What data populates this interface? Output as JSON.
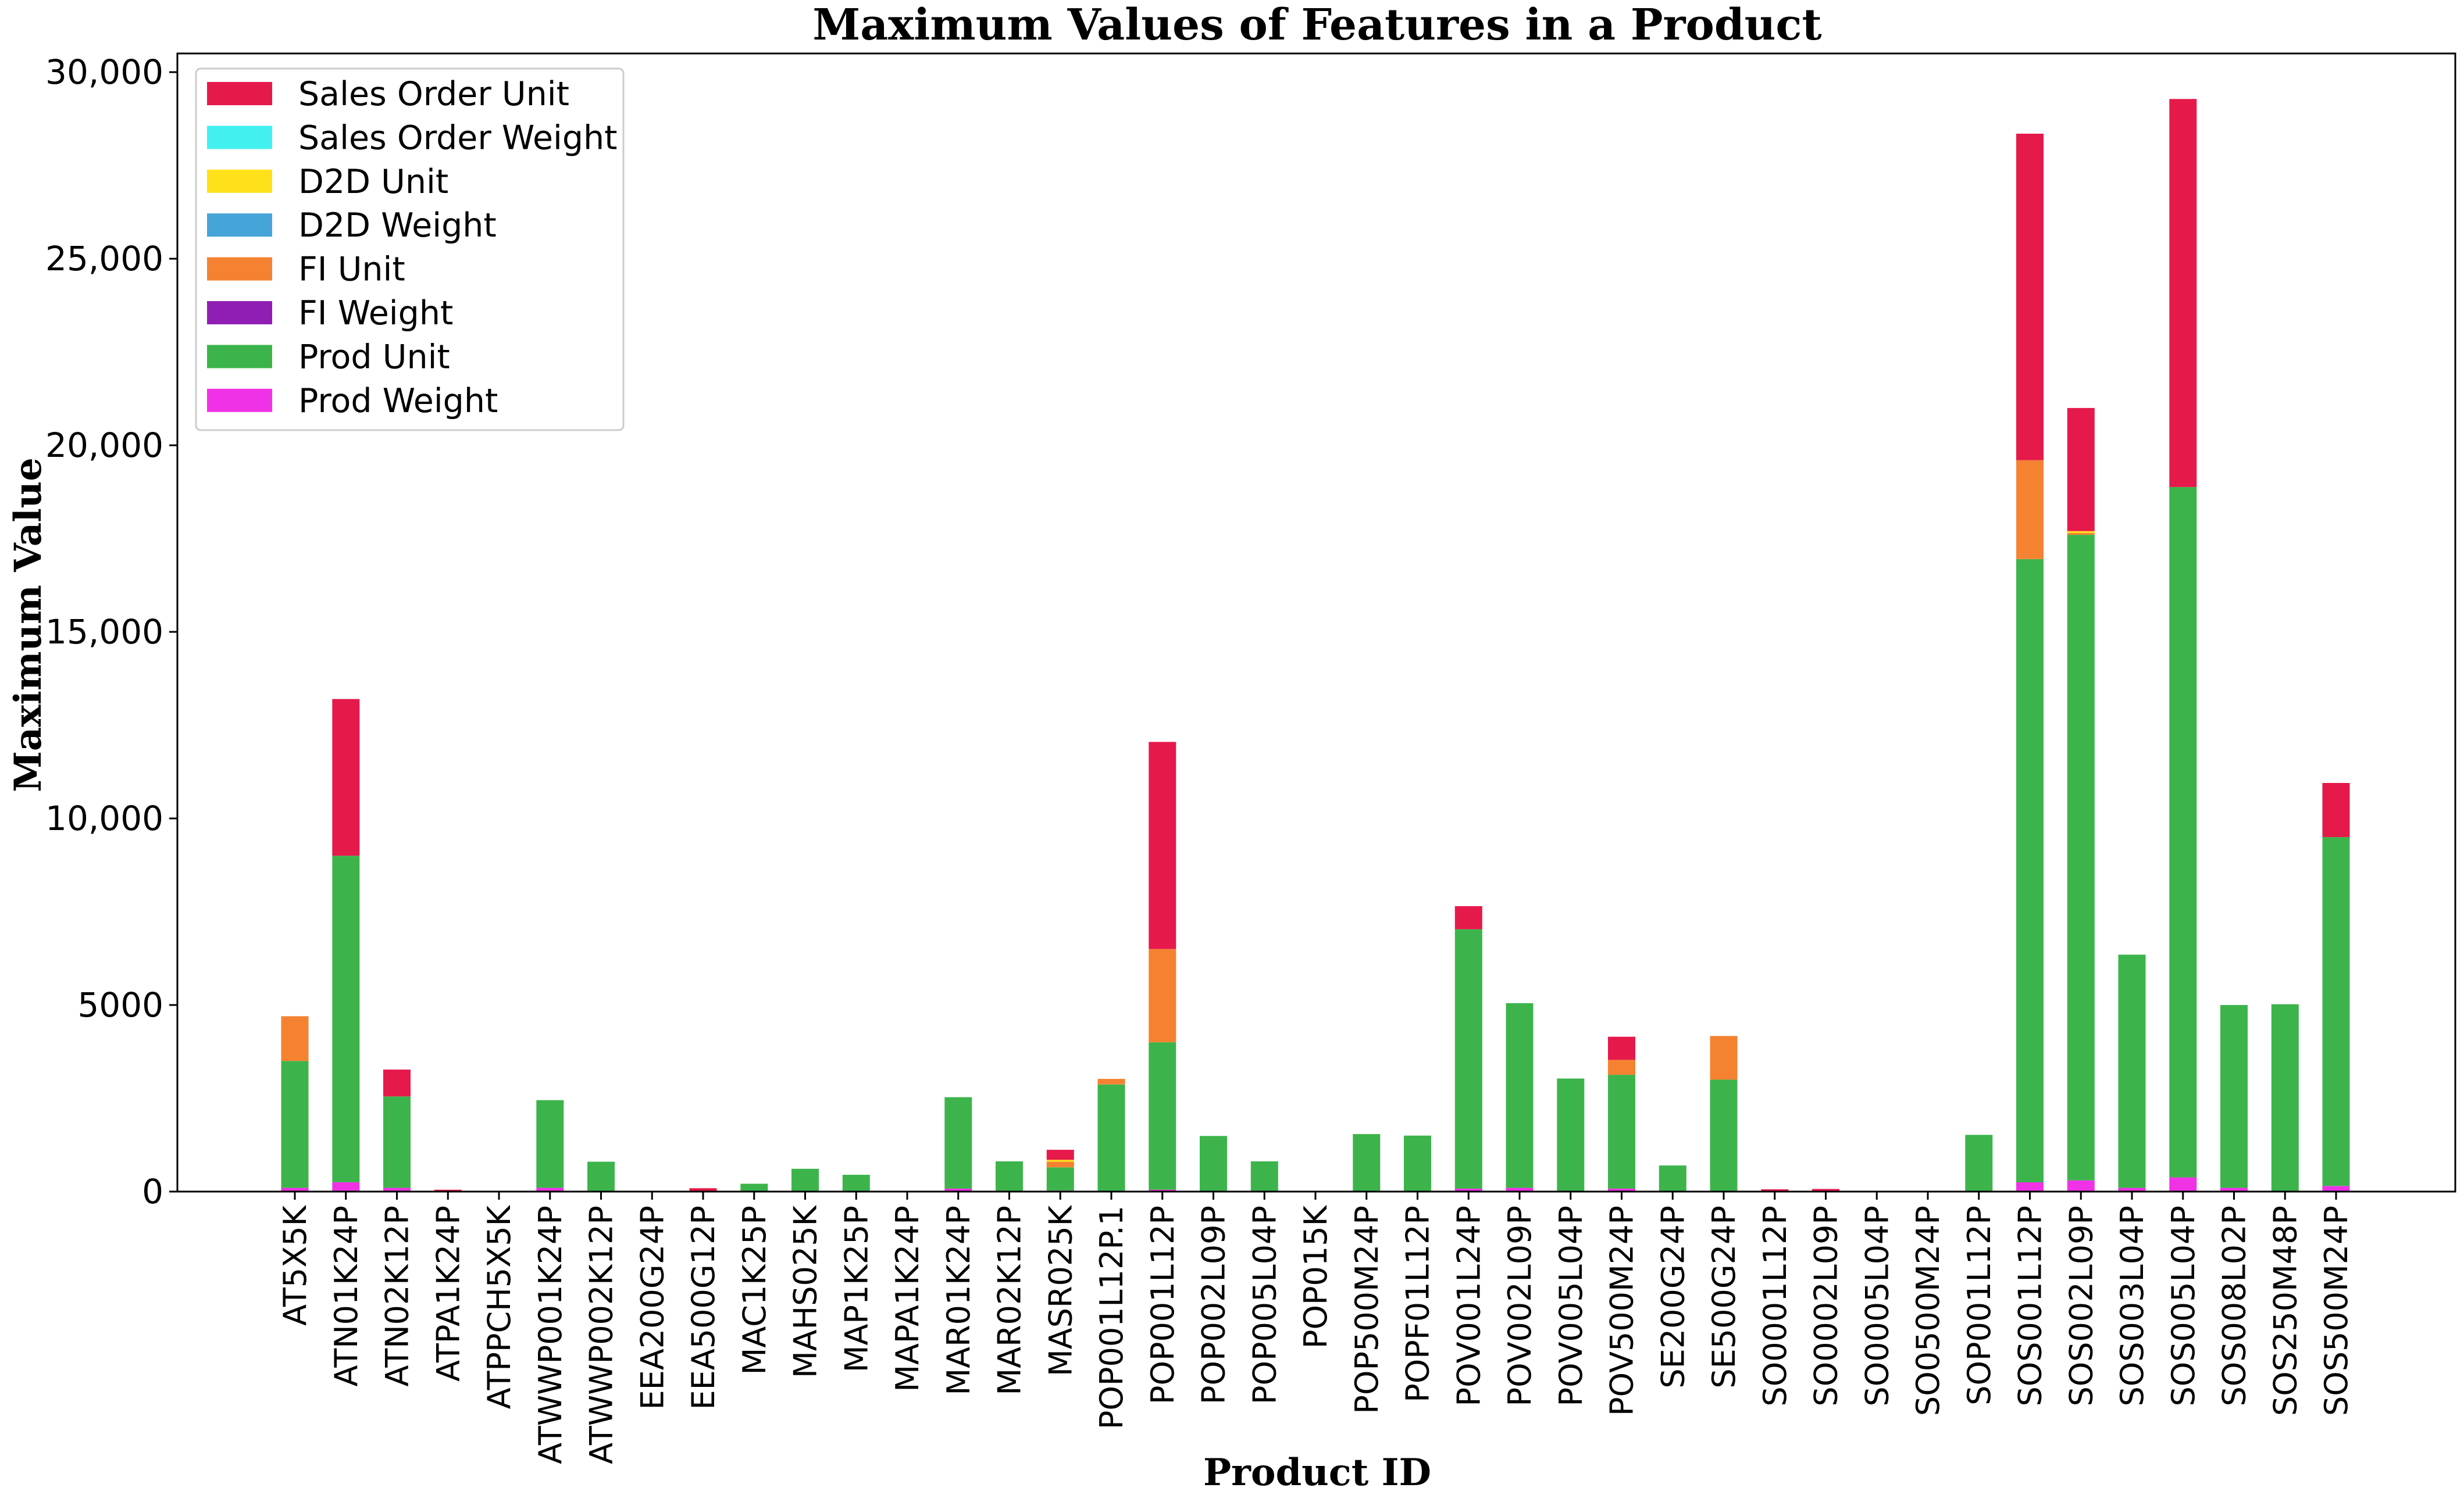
{
  "chart_data": {
    "type": "bar",
    "stacked": true,
    "title": "Maximum Values of Features in a Product",
    "xlabel": "Product ID",
    "ylabel": "Maximum Value",
    "ylim": [
      0,
      30500
    ],
    "yticks": [
      0,
      5000,
      10000,
      15000,
      20000,
      25000,
      30000
    ],
    "ytick_labels": [
      "0",
      "5000",
      "10,000",
      "15,000",
      "20,000",
      "25,000",
      "30,000"
    ],
    "grid": false,
    "legend_position": "top-left",
    "categories": [
      "AT5X5K",
      "ATN01K24P",
      "ATN02K12P",
      "ATPA1K24P",
      "ATPPCH5X5K",
      "ATWWP001K24P",
      "ATWWP002K12P",
      "EEA200G24P",
      "EEA500G12P",
      "MAC1K25P",
      "MAHS025K",
      "MAP1K25P",
      "MAPA1K24P",
      "MAR01K24P",
      "MAR02K12P",
      "MASR025K",
      "POP001L12P.1",
      "POP001L12P",
      "POP002L09P",
      "POP005L04P",
      "POP015K",
      "POP500M24P",
      "POPF01L12P",
      "POV001L24P",
      "POV002L09P",
      "POV005L04P",
      "POV500M24P",
      "SE200G24P",
      "SE500G24P",
      "SO0001L12P",
      "SO0002L09P",
      "SO0005L04P",
      "SO0500M24P",
      "SOP001L12P",
      "SOS001L12P",
      "SOS002L09P",
      "SOS003L04P",
      "SOS005L04P",
      "SOS008L02P",
      "SOS250M48P",
      "SOS500M24P"
    ],
    "series": [
      {
        "name": "Prod Weight",
        "color": "#f032e6",
        "values": [
          100,
          250,
          100,
          10,
          0,
          100,
          20,
          0,
          10,
          10,
          10,
          10,
          0,
          80,
          10,
          30,
          20,
          50,
          10,
          10,
          0,
          20,
          20,
          80,
          100,
          10,
          80,
          0,
          20,
          10,
          10,
          0,
          0,
          20,
          250,
          300,
          100,
          380,
          100,
          20,
          150
        ]
      },
      {
        "name": "Prod Unit",
        "color": "#3cb44b",
        "values": [
          3400,
          8750,
          2450,
          0,
          0,
          2350,
          780,
          0,
          0,
          200,
          600,
          440,
          0,
          2450,
          800,
          620,
          2850,
          3950,
          1480,
          800,
          0,
          1520,
          1480,
          6950,
          4950,
          3020,
          3050,
          700,
          2980,
          0,
          0,
          0,
          0,
          1500,
          16700,
          17300,
          6250,
          18500,
          4900,
          5000,
          9350
        ]
      },
      {
        "name": "FI Weight",
        "color": "#911eb4",
        "values": [
          0,
          0,
          0,
          0,
          0,
          0,
          0,
          0,
          0,
          0,
          0,
          0,
          0,
          0,
          0,
          0,
          0,
          0,
          0,
          0,
          0,
          0,
          0,
          0,
          0,
          0,
          0,
          0,
          0,
          0,
          0,
          0,
          0,
          0,
          0,
          0,
          0,
          0,
          0,
          0,
          0
        ]
      },
      {
        "name": "FI Unit",
        "color": "#f58231",
        "values": [
          1200,
          0,
          0,
          0,
          0,
          0,
          0,
          0,
          0,
          0,
          0,
          0,
          0,
          0,
          0,
          150,
          150,
          2500,
          0,
          0,
          0,
          0,
          0,
          0,
          0,
          0,
          400,
          0,
          1170,
          0,
          0,
          0,
          0,
          0,
          2650,
          50,
          0,
          0,
          0,
          0,
          0
        ]
      },
      {
        "name": "D2D Weight",
        "color": "#46a5d8",
        "values": [
          0,
          0,
          0,
          0,
          0,
          0,
          0,
          0,
          0,
          0,
          0,
          0,
          0,
          0,
          0,
          0,
          0,
          0,
          0,
          0,
          0,
          0,
          0,
          0,
          0,
          0,
          0,
          0,
          0,
          0,
          0,
          0,
          0,
          0,
          0,
          0,
          0,
          0,
          0,
          0,
          0
        ]
      },
      {
        "name": "D2D Unit",
        "color": "#ffe119",
        "values": [
          0,
          0,
          0,
          0,
          0,
          0,
          0,
          0,
          0,
          0,
          0,
          0,
          0,
          0,
          0,
          50,
          0,
          0,
          0,
          0,
          0,
          0,
          0,
          0,
          0,
          0,
          0,
          0,
          0,
          0,
          0,
          0,
          0,
          0,
          0,
          50,
          0,
          0,
          0,
          0,
          0
        ]
      },
      {
        "name": "Sales Order Weight",
        "color": "#42f0f0",
        "values": [
          0,
          0,
          0,
          0,
          0,
          0,
          0,
          0,
          0,
          0,
          0,
          0,
          0,
          0,
          0,
          0,
          0,
          0,
          0,
          0,
          0,
          0,
          0,
          0,
          0,
          0,
          0,
          0,
          0,
          0,
          0,
          0,
          0,
          0,
          0,
          0,
          0,
          0,
          0,
          0,
          0
        ]
      },
      {
        "name": "Sales Order Unit",
        "color": "#e6194b",
        "values": [
          0,
          4200,
          720,
          40,
          0,
          0,
          0,
          0,
          80,
          0,
          0,
          0,
          0,
          0,
          0,
          270,
          0,
          5550,
          0,
          0,
          0,
          0,
          0,
          620,
          0,
          0,
          620,
          0,
          0,
          50,
          60,
          0,
          0,
          0,
          8750,
          3300,
          0,
          10400,
          0,
          0,
          1450
        ]
      }
    ],
    "legend_order": [
      "Sales Order Unit",
      "Sales Order Weight",
      "D2D Unit",
      "D2D Weight",
      "FI Unit",
      "FI Weight",
      "Prod Unit",
      "Prod Weight"
    ]
  }
}
